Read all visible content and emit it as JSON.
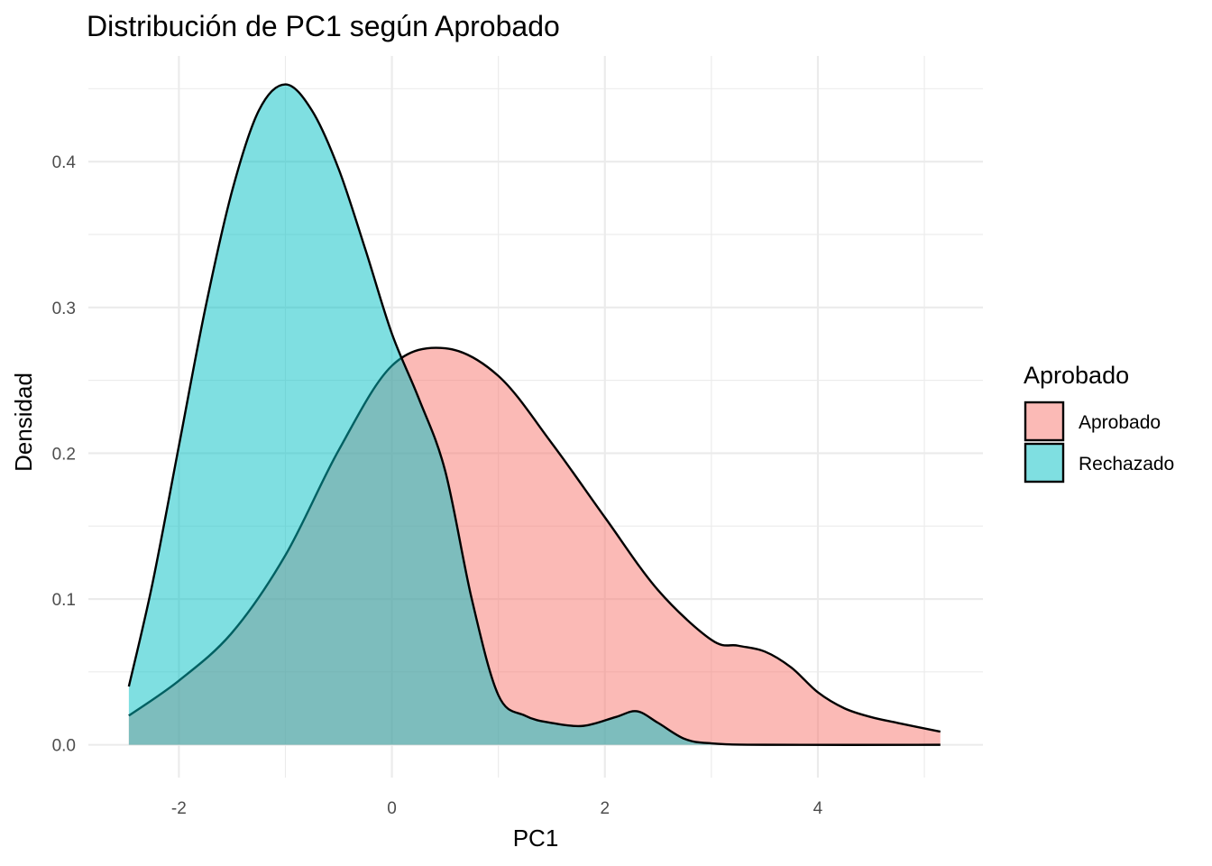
{
  "chart_data": {
    "type": "area",
    "title": "Distribución de PC1 según Aprobado",
    "xlabel": "PC1",
    "ylabel": "Densidad",
    "xlim": [
      -2.85,
      5.55
    ],
    "ylim": [
      -0.0225,
      0.4725
    ],
    "x_ticks": [
      -2,
      0,
      2,
      4
    ],
    "x_tick_labels": [
      "-2",
      "0",
      "2",
      "4"
    ],
    "y_ticks": [
      0.0,
      0.1,
      0.2,
      0.3,
      0.4
    ],
    "y_tick_labels": [
      "0.0",
      "0.1",
      "0.2",
      "0.3",
      "0.4"
    ],
    "grid": true,
    "legend": {
      "title": "Aprobado",
      "position": "right"
    },
    "series": [
      {
        "name": "Aprobado",
        "color": "#F8766D",
        "fill_opacity": 0.5,
        "x": [
          -2.47,
          -2.0,
          -1.5,
          -1.0,
          -0.5,
          0.0,
          0.5,
          1.0,
          1.5,
          2.0,
          2.5,
          3.0,
          3.25,
          3.5,
          3.75,
          4.0,
          4.25,
          4.5,
          4.75,
          5.15
        ],
        "y": [
          0.02,
          0.044,
          0.077,
          0.13,
          0.202,
          0.26,
          0.272,
          0.253,
          0.207,
          0.156,
          0.106,
          0.072,
          0.068,
          0.064,
          0.053,
          0.036,
          0.025,
          0.019,
          0.015,
          0.009
        ]
      },
      {
        "name": "Rechazado",
        "color": "#00BFC4",
        "fill_opacity": 0.5,
        "x": [
          -2.47,
          -2.25,
          -2.0,
          -1.75,
          -1.5,
          -1.25,
          -1.0,
          -0.75,
          -0.5,
          -0.25,
          0.0,
          0.25,
          0.5,
          0.75,
          1.0,
          1.25,
          1.5,
          1.8,
          2.1,
          2.3,
          2.5,
          2.75,
          3.0,
          3.5,
          5.15
        ],
        "y": [
          0.04,
          0.11,
          0.205,
          0.3,
          0.38,
          0.435,
          0.453,
          0.435,
          0.395,
          0.34,
          0.282,
          0.238,
          0.188,
          0.1,
          0.034,
          0.02,
          0.015,
          0.013,
          0.019,
          0.023,
          0.015,
          0.004,
          0.001,
          0.0,
          0.0
        ]
      }
    ]
  }
}
